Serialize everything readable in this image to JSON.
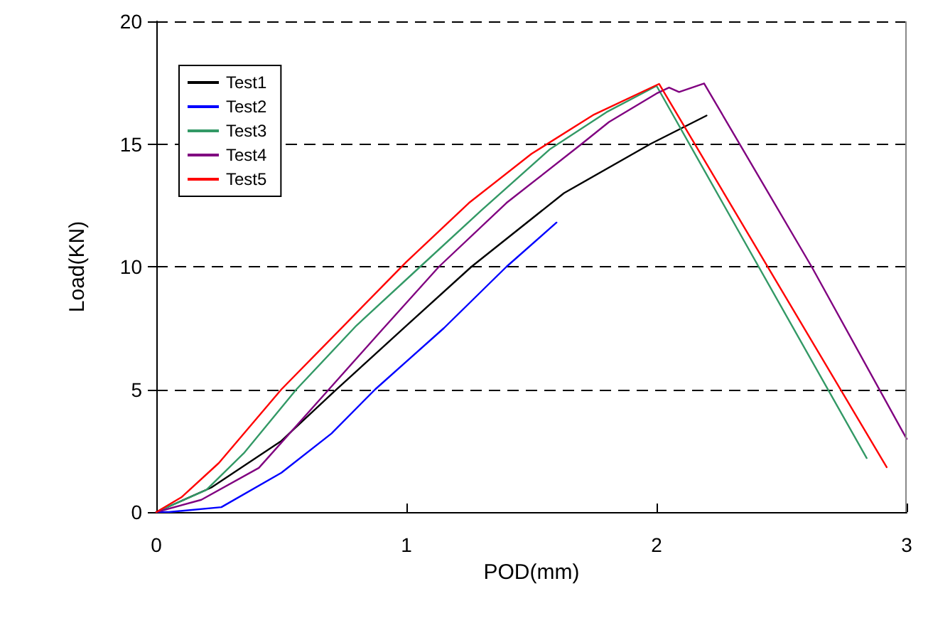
{
  "chart_data": {
    "type": "line",
    "xlabel": "POD(mm)",
    "ylabel": "Load(KN)",
    "xlim": [
      0,
      3
    ],
    "xticks": [
      0,
      1,
      2,
      3
    ],
    "ylim": [
      0,
      20
    ],
    "yticks": [
      0,
      5,
      10,
      15,
      20
    ],
    "grid": "y",
    "legend": "top left",
    "marker": "none",
    "line_style": "solid",
    "series": [
      {
        "name": "Test1",
        "color": "#000000",
        "x": [
          0,
          0.22,
          0.5,
          0.71,
          1.0,
          1.26,
          1.63,
          1.975,
          2.2
        ],
        "values": [
          0,
          1,
          2.9,
          4.9,
          7.6,
          10,
          13,
          15,
          16.16
        ]
      },
      {
        "name": "Test2",
        "color": "#0000ff",
        "x": [
          0,
          0.05,
          0.26,
          0.5,
          0.7,
          0.875,
          1.15,
          1.4,
          1.6
        ],
        "values": [
          0,
          0,
          0.2,
          1.6,
          3.2,
          5,
          7.5,
          10,
          11.8
        ]
      },
      {
        "name": "Test3",
        "color": "#339966",
        "x": [
          0,
          0.2,
          0.35,
          0.56,
          0.8,
          1.055,
          1.3,
          1.575,
          1.8,
          2.0,
          2.84
        ],
        "values": [
          0,
          0.9,
          2.4,
          5,
          7.6,
          10,
          12.3,
          14.8,
          16.3,
          17.37,
          2.2
        ]
      },
      {
        "name": "Test4",
        "color": "#800080",
        "x": [
          0,
          0.18,
          0.41,
          0.69,
          0.9,
          1.13,
          1.4,
          1.7,
          1.81,
          2.0,
          2.05,
          2.09,
          2.19,
          2.62,
          3.0
        ],
        "values": [
          0,
          0.5,
          1.8,
          5,
          7.4,
          10,
          12.6,
          15,
          15.9,
          17.06,
          17.3,
          17.12,
          17.47,
          10,
          2.98
        ]
      },
      {
        "name": "Test5",
        "color": "#ff0000",
        "x": [
          0,
          0.1,
          0.25,
          0.5,
          0.75,
          1.0,
          1.25,
          1.5,
          1.75,
          2.01,
          2.92
        ],
        "values": [
          0,
          0.6,
          2,
          5,
          7.6,
          10.2,
          12.6,
          14.6,
          16.2,
          17.45,
          1.83
        ]
      }
    ]
  }
}
